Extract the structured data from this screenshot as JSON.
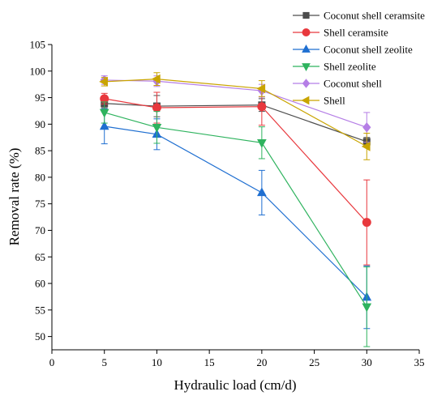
{
  "chart_data": {
    "type": "line",
    "title": "",
    "xlabel": "Hydraulic load (cm/d)",
    "ylabel": "Removal rate (%)",
    "xlim": [
      0,
      35
    ],
    "ylim": [
      47.5,
      105
    ],
    "xticks": [
      0,
      5,
      10,
      15,
      20,
      25,
      30,
      35
    ],
    "yticks": [
      50,
      55,
      60,
      65,
      70,
      75,
      80,
      85,
      90,
      95,
      100,
      105
    ],
    "x": [
      5,
      10,
      20,
      30
    ],
    "grid": false,
    "legend_position": "top-right",
    "series": [
      {
        "name": "Coconut shell ceramsite",
        "color": "#4d4d4d",
        "marker": "square",
        "values": [
          93.9,
          93.4,
          93.6,
          86.7
        ],
        "errors": [
          0.8,
          2.0,
          1.2,
          0.8
        ]
      },
      {
        "name": "Shell ceramsite",
        "color": "#e8383d",
        "marker": "circle",
        "values": [
          94.8,
          93.1,
          93.3,
          71.5
        ],
        "errors": [
          1.0,
          2.9,
          3.5,
          8.0
        ]
      },
      {
        "name": "Coconut shell zeolite",
        "color": "#1f6fd1",
        "marker": "triangle-up",
        "values": [
          89.6,
          88.1,
          77.1,
          57.4
        ],
        "errors": [
          3.3,
          2.9,
          4.2,
          5.9
        ]
      },
      {
        "name": "Shell zeolite",
        "color": "#2eb35e",
        "marker": "triangle-down",
        "values": [
          92.2,
          89.4,
          86.5,
          55.6
        ],
        "errors": [
          2.0,
          3.0,
          3.0,
          7.5
        ]
      },
      {
        "name": "Coconut shell",
        "color": "#b57ee6",
        "marker": "diamond",
        "values": [
          98.3,
          98.1,
          96.3,
          89.4
        ],
        "errors": [
          0.8,
          1.0,
          1.2,
          2.8
        ]
      },
      {
        "name": "Shell",
        "color": "#c9a400",
        "marker": "triangle-left",
        "values": [
          98.0,
          98.5,
          96.7,
          85.8
        ],
        "errors": [
          0.8,
          1.2,
          1.5,
          2.5
        ]
      }
    ]
  }
}
